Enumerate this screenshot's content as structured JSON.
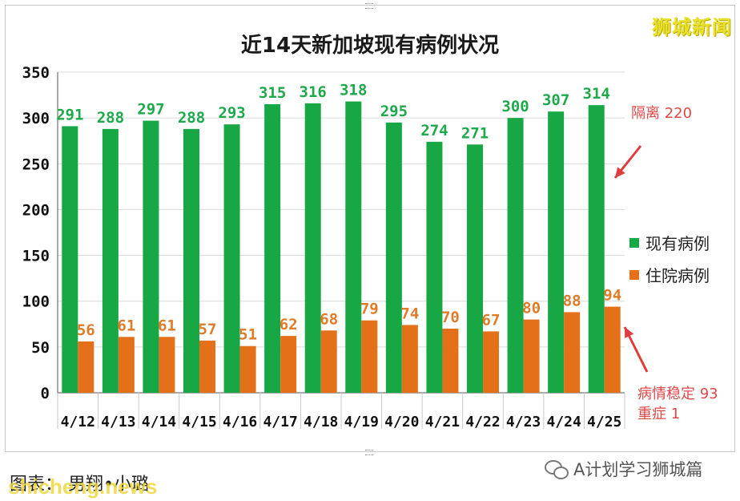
{
  "brand": "狮城新闻",
  "footer": {
    "credit": "图表：  男翔•小璐",
    "watermark": "shicheng.news",
    "account": "A计划学习狮城篇"
  },
  "annotations": {
    "isolation": "隔离 220",
    "stable": "病情稳定 93",
    "critical": "重症 1"
  },
  "chart_data": {
    "type": "bar",
    "title": "近14天新加坡现有病例状况",
    "categories": [
      "4/12",
      "4/13",
      "4/14",
      "4/15",
      "4/16",
      "4/17",
      "4/18",
      "4/19",
      "4/20",
      "4/21",
      "4/22",
      "4/23",
      "4/24",
      "4/25"
    ],
    "series": [
      {
        "name": "现有病例",
        "color": "#17a745",
        "label_color": "#1ea94a",
        "values": [
          291,
          288,
          297,
          288,
          293,
          315,
          316,
          318,
          295,
          274,
          271,
          300,
          307,
          314
        ]
      },
      {
        "name": "住院病例",
        "color": "#e5701a",
        "label_color": "#e07b2a",
        "values": [
          56,
          61,
          61,
          57,
          51,
          62,
          68,
          79,
          74,
          70,
          67,
          80,
          88,
          94
        ]
      }
    ],
    "ylim": [
      0,
      350
    ],
    "yticks": [
      "0",
      "50",
      "100",
      "150",
      "200",
      "250",
      "300",
      "350"
    ],
    "grid": true,
    "legend": "right",
    "xlabel": "",
    "ylabel": ""
  }
}
